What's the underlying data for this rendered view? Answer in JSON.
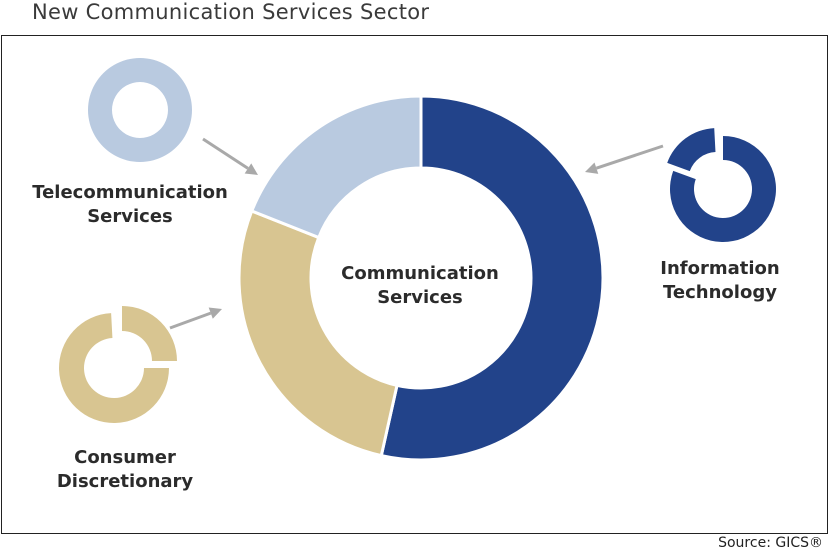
{
  "title": "New Communication Services Sector",
  "center_label": [
    "Communication",
    "Services"
  ],
  "source": "Source: GICS®",
  "colors": {
    "information_technology": "#22438a",
    "consumer_discretionary": "#d8c591",
    "telecommunication_services": "#b9cae0",
    "arrow": "#a9a9a9"
  },
  "chart_data": {
    "type": "pie",
    "donut": true,
    "slices": [
      {
        "label": "Information Technology",
        "value": 53.5,
        "color": "#22438a"
      },
      {
        "label": "Consumer Discretionary",
        "value": 27.5,
        "color": "#d8c591"
      },
      {
        "label": "Telecommunication Services",
        "value": 19.0,
        "color": "#b9cae0"
      }
    ]
  },
  "labels": {
    "telecom": [
      "Telecommunication",
      "Services"
    ],
    "it": [
      "Information",
      "Technology"
    ],
    "consumer": [
      "Consumer",
      "Discretionary"
    ]
  }
}
